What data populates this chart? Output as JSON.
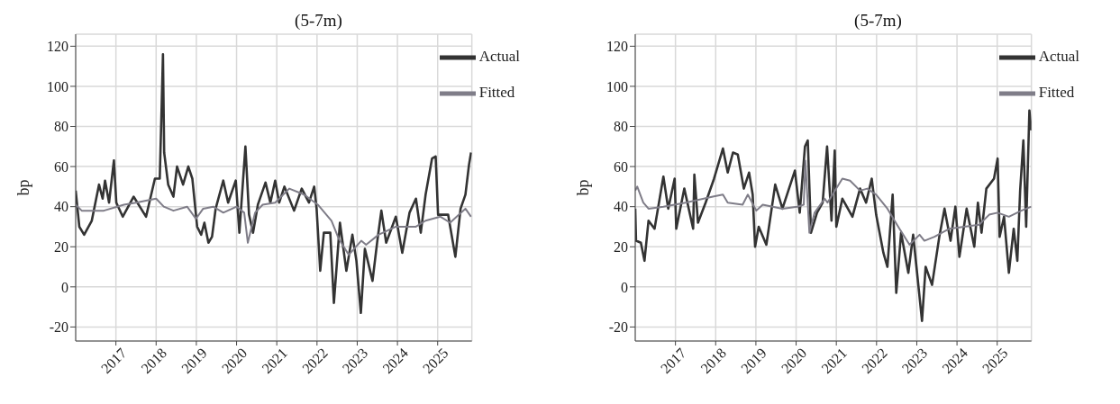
{
  "chart_data": [
    {
      "type": "line",
      "title": "(5-7m)",
      "ylabel": "bp",
      "xlim": [
        2016.0,
        2025.85
      ],
      "xticks": [
        2017,
        2018,
        2019,
        2020,
        2021,
        2022,
        2023,
        2024,
        2025
      ],
      "ylim": [
        -27,
        126
      ],
      "yticks": [
        -20,
        0,
        20,
        40,
        60,
        80,
        100,
        120
      ],
      "grid": true,
      "legend": "top right",
      "marker": "none",
      "line_style": "solid",
      "series": [
        {
          "name": "Actual",
          "color": "#333333",
          "x": [
            2016.0,
            2016.09,
            2016.21,
            2016.4,
            2016.58,
            2016.67,
            2016.73,
            2016.83,
            2016.95,
            2017.01,
            2017.17,
            2017.44,
            2017.75,
            2017.97,
            2018.09,
            2018.14,
            2018.17,
            2018.2,
            2018.3,
            2018.43,
            2018.52,
            2018.67,
            2018.8,
            2018.9,
            2019.02,
            2019.12,
            2019.2,
            2019.3,
            2019.39,
            2019.48,
            2019.67,
            2019.79,
            2019.98,
            2020.07,
            2020.22,
            2020.31,
            2020.41,
            2020.53,
            2020.72,
            2020.84,
            2020.96,
            2021.06,
            2021.19,
            2021.43,
            2021.62,
            2021.8,
            2021.93,
            2021.99,
            2022.08,
            2022.17,
            2022.33,
            2022.42,
            2022.57,
            2022.73,
            2022.88,
            2022.98,
            2023.09,
            2023.19,
            2023.38,
            2023.5,
            2023.6,
            2023.72,
            2023.96,
            2024.12,
            2024.3,
            2024.46,
            2024.58,
            2024.7,
            2024.86,
            2024.95,
            2025.01,
            2025.26,
            2025.44,
            2025.57,
            2025.69,
            2025.78,
            2025.83
          ],
          "values": [
            48,
            30,
            26,
            33,
            51,
            44,
            53,
            42,
            63,
            42,
            35,
            45,
            35,
            54,
            54,
            92,
            116,
            67,
            51,
            45,
            60,
            51,
            60,
            54,
            30,
            26,
            32,
            22,
            25,
            39,
            53,
            42,
            53,
            27,
            70,
            36,
            27,
            41,
            52,
            42,
            53,
            42,
            50,
            38,
            49,
            42,
            50,
            39,
            8,
            27,
            27,
            -8,
            32,
            8,
            26,
            13,
            -13,
            19,
            3,
            23,
            38,
            22,
            35,
            17,
            37,
            44,
            27,
            46,
            64,
            65,
            36,
            36,
            15,
            39,
            46,
            61,
            67
          ]
        },
        {
          "name": "Fitted",
          "color": "#7f7d88",
          "x": [
            2016.0,
            2016.15,
            2016.7,
            2017.2,
            2017.5,
            2018.0,
            2018.19,
            2018.43,
            2018.77,
            2018.99,
            2019.17,
            2019.42,
            2019.67,
            2020.0,
            2020.19,
            2020.28,
            2020.46,
            2020.65,
            2020.96,
            2021.31,
            2021.68,
            2022.02,
            2022.36,
            2022.54,
            2022.79,
            2023.1,
            2023.22,
            2023.53,
            2023.96,
            2024.46,
            2024.7,
            2025.07,
            2025.31,
            2025.69,
            2025.83
          ],
          "values": [
            41,
            38,
            38,
            41,
            42,
            44,
            40,
            38,
            40,
            34,
            39,
            40,
            37,
            40,
            37,
            22,
            37,
            41,
            42,
            49,
            46,
            41,
            33,
            24,
            16,
            23,
            21,
            26,
            30,
            30,
            33,
            35,
            32,
            39,
            35
          ]
        }
      ]
    },
    {
      "type": "line",
      "title": "(5-7m)",
      "ylabel": "bp",
      "xlim": [
        2016.0,
        2025.85
      ],
      "xticks": [
        2017,
        2018,
        2019,
        2020,
        2021,
        2022,
        2023,
        2024,
        2025
      ],
      "ylim": [
        -27,
        126
      ],
      "yticks": [
        -20,
        0,
        20,
        40,
        60,
        80,
        100,
        120
      ],
      "grid": true,
      "legend": "top right",
      "marker": "none",
      "line_style": "solid",
      "series": [
        {
          "name": "Actual",
          "color": "#333333",
          "x": [
            2016.0,
            2016.02,
            2016.14,
            2016.23,
            2016.33,
            2016.48,
            2016.7,
            2016.82,
            2016.98,
            2017.02,
            2017.22,
            2017.44,
            2017.47,
            2017.56,
            2017.75,
            2017.96,
            2018.18,
            2018.3,
            2018.43,
            2018.55,
            2018.7,
            2018.83,
            2018.92,
            2018.98,
            2019.07,
            2019.26,
            2019.48,
            2019.66,
            2019.97,
            2020.09,
            2020.22,
            2020.29,
            2020.37,
            2020.52,
            2020.66,
            2020.77,
            2020.88,
            2020.96,
            2021.0,
            2021.15,
            2021.4,
            2021.59,
            2021.74,
            2021.88,
            2021.99,
            2022.17,
            2022.27,
            2022.4,
            2022.49,
            2022.61,
            2022.79,
            2022.91,
            2023.13,
            2023.22,
            2023.38,
            2023.56,
            2023.69,
            2023.84,
            2023.96,
            2024.06,
            2024.24,
            2024.43,
            2024.52,
            2024.61,
            2024.73,
            2024.92,
            2025.01,
            2025.06,
            2025.17,
            2025.29,
            2025.41,
            2025.5,
            2025.57,
            2025.65,
            2025.72,
            2025.8,
            2025.85
          ],
          "values": [
            39,
            23,
            22,
            13,
            33,
            29,
            55,
            39,
            54,
            29,
            49,
            29,
            56,
            32,
            42,
            54,
            69,
            57,
            67,
            66,
            49,
            57,
            46,
            20,
            30,
            21,
            51,
            39,
            58,
            37,
            70,
            73,
            27,
            37,
            42,
            70,
            33,
            68,
            30,
            44,
            35,
            49,
            42,
            54,
            36,
            17,
            10,
            46,
            -3,
            27,
            7,
            26,
            -17,
            10,
            1,
            25,
            39,
            23,
            40,
            15,
            39,
            20,
            42,
            27,
            49,
            54,
            64,
            25,
            35,
            7,
            29,
            13,
            48,
            73,
            30,
            88,
            78
          ]
        },
        {
          "name": "Fitted",
          "color": "#7f7d88",
          "x": [
            2016.0,
            2016.05,
            2016.2,
            2016.33,
            2016.7,
            2017.25,
            2017.93,
            2018.18,
            2018.3,
            2018.67,
            2018.8,
            2019.01,
            2019.17,
            2019.66,
            2020.03,
            2020.19,
            2020.23,
            2020.33,
            2020.46,
            2020.71,
            2020.78,
            2021.15,
            2021.34,
            2021.59,
            2021.77,
            2021.99,
            2022.27,
            2022.57,
            2022.82,
            2023.07,
            2023.19,
            2023.44,
            2023.81,
            2024.18,
            2024.55,
            2024.8,
            2025.01,
            2025.29,
            2025.6,
            2025.85
          ],
          "values": [
            48,
            50,
            42,
            39,
            40,
            42,
            45,
            46,
            42,
            41,
            46,
            38,
            41,
            39,
            40,
            41,
            63,
            27,
            37,
            44,
            42,
            54,
            53,
            48,
            49,
            46,
            39,
            29,
            21,
            26,
            23,
            25,
            29,
            30,
            31,
            36,
            37,
            35,
            38,
            40
          ]
        }
      ]
    }
  ]
}
